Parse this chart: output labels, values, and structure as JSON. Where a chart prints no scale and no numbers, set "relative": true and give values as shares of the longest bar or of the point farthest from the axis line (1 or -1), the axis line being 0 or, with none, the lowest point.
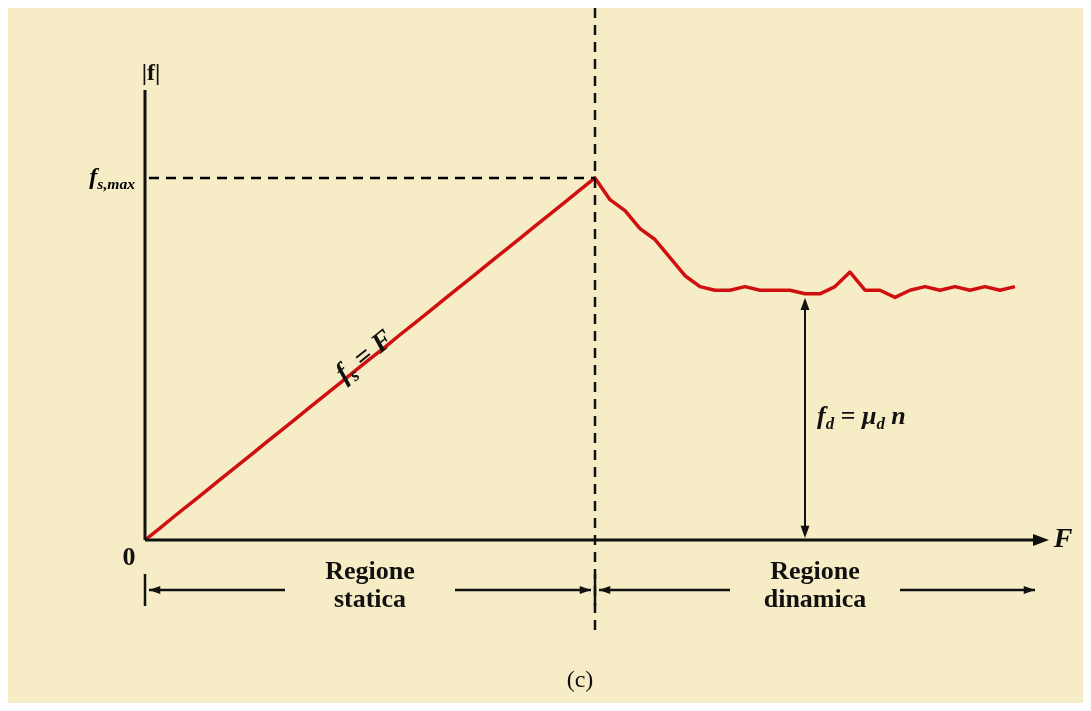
{
  "chart_data": {
    "type": "line",
    "relative": true,
    "xlabel": "F",
    "ylabel": "|f|",
    "tick_labels": false,
    "marker": "none",
    "line_style": "solid",
    "legend": false,
    "categories": [
      null,
      null,
      null,
      null,
      null,
      null,
      null,
      null,
      null,
      null,
      null,
      null,
      null,
      null,
      null,
      null,
      null,
      null,
      null,
      null,
      null,
      null,
      null,
      null,
      null,
      null,
      null,
      null,
      null,
      null,
      null,
      null,
      null,
      null,
      null,
      null,
      null,
      null,
      null,
      null,
      null,
      null,
      null,
      null,
      null,
      null,
      null,
      null,
      null,
      null,
      null,
      null,
      null,
      null,
      null,
      null,
      null,
      null,
      null
    ],
    "series": [
      {
        "color": "#d01010",
        "values": [
          0,
          0.033,
          0.067,
          0.1,
          0.133,
          0.167,
          0.2,
          0.233,
          0.267,
          0.3,
          0.333,
          0.367,
          0.4,
          0.433,
          0.467,
          0.5,
          0.533,
          0.567,
          0.6,
          0.633,
          0.667,
          0.7,
          0.733,
          0.767,
          0.8,
          0.833,
          0.867,
          0.9,
          0.933,
          0.967,
          1,
          0.94,
          0.91,
          0.86,
          0.83,
          0.78,
          0.73,
          0.7,
          0.69,
          0.69,
          0.7,
          0.69,
          0.69,
          0.69,
          0.68,
          0.68,
          0.7,
          0.74,
          0.69,
          0.69,
          0.67,
          0.69,
          0.7,
          0.69,
          0.7,
          0.69,
          0.7,
          0.69,
          0.7
        ]
      }
    ],
    "ref_lines": [
      {
        "axis": "y",
        "value": 1,
        "label": "f$_{s,max}$",
        "line_style": "dashed",
        "color": "#000000"
      }
    ],
    "annotations": [
      "0",
      "f$_{s}$ = F",
      "f$_{d}$ = μ$_{d}$ n",
      "Regione\nstatica",
      "Regione\ndinamica",
      "(c)"
    ]
  }
}
